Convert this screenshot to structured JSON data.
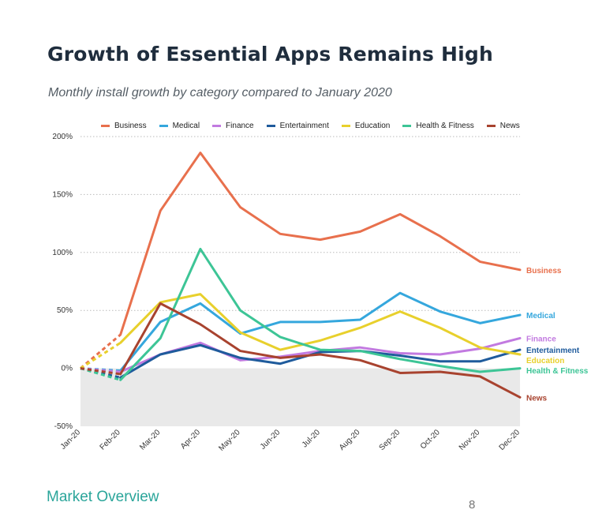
{
  "page": {
    "title": "Growth of Essential Apps Remains High",
    "subtitle": "Monthly install growth by category compared to January 2020",
    "footer": "Market Overview",
    "page_number": "8"
  },
  "chart_data": {
    "type": "line",
    "title": "Growth of Essential Apps Remains High",
    "subtitle": "Monthly install growth by category compared to January 2020",
    "xlabel": "",
    "ylabel": "",
    "categories": [
      "Jan-20",
      "Feb-20",
      "Mar-20",
      "Apr-20",
      "May-20",
      "Jun-20",
      "Jul-20",
      "Aug-20",
      "Sep-20",
      "Oct-20",
      "Nov-20",
      "Dec-20"
    ],
    "ylim": [
      -50,
      200
    ],
    "yticks": [
      -50,
      0,
      50,
      100,
      150,
      200
    ],
    "ytick_labels": [
      "-50%",
      "0%",
      "50%",
      "100%",
      "150%",
      "200%"
    ],
    "grid": true,
    "negative_region_shaded": true,
    "dashed_segment": "Jan-20 to Feb-20",
    "legend_position": "top",
    "series": [
      {
        "name": "Business",
        "color": "#e8704d",
        "values": [
          0,
          29,
          136,
          186,
          139,
          116,
          111,
          118,
          133,
          114,
          92,
          85
        ]
      },
      {
        "name": "Medical",
        "color": "#35a7dd",
        "values": [
          0,
          -2,
          40,
          56,
          30,
          40,
          40,
          42,
          65,
          49,
          39,
          46
        ]
      },
      {
        "name": "Finance",
        "color": "#c27ae0",
        "values": [
          0,
          -3,
          12,
          22,
          7,
          10,
          15,
          18,
          13,
          12,
          17,
          26
        ]
      },
      {
        "name": "Entertainment",
        "color": "#1f5b9c",
        "values": [
          0,
          -8,
          12,
          20,
          9,
          4,
          14,
          15,
          11,
          6,
          6,
          16
        ]
      },
      {
        "name": "Education",
        "color": "#e8d02c",
        "values": [
          0,
          22,
          57,
          64,
          31,
          16,
          24,
          35,
          49,
          35,
          18,
          12
        ]
      },
      {
        "name": "Health & Fitness",
        "color": "#3dc596",
        "values": [
          0,
          -10,
          26,
          103,
          50,
          27,
          16,
          15,
          8,
          2,
          -3,
          0
        ]
      },
      {
        "name": "News",
        "color": "#a8432f",
        "values": [
          0,
          -5,
          56,
          38,
          15,
          9,
          12,
          7,
          -4,
          -3,
          -7,
          -25
        ]
      }
    ]
  }
}
